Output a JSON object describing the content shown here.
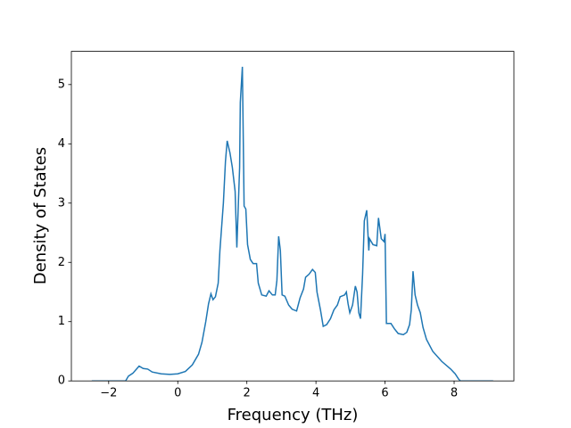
{
  "chart_data": {
    "type": "line",
    "x_label": "Frequency (THz)",
    "y_label": "Density of States",
    "xlim": [
      -3.08,
      9.73
    ],
    "ylim": [
      0,
      5.56
    ],
    "xticks": [
      {
        "value": -2,
        "label": "−2"
      },
      0,
      2,
      4,
      6,
      8
    ],
    "yticks": [
      0,
      1,
      2,
      3,
      4,
      5
    ],
    "series": [
      {
        "color": "#1f77b4",
        "x": [
          -2.49,
          -1.51,
          -1.43,
          -1.3,
          -1.12,
          -1.0,
          -0.87,
          -0.74,
          -0.48,
          -0.23,
          0,
          0.22,
          0.42,
          0.6,
          0.7,
          0.81,
          0.89,
          0.96,
          1.02,
          1.09,
          1.17,
          1.22,
          1.32,
          1.38,
          1.43,
          1.51,
          1.58,
          1.66,
          1.71,
          1.79,
          1.81,
          1.87,
          1.92,
          1.97,
          2.02,
          2.1,
          2.18,
          2.28,
          2.33,
          2.43,
          2.56,
          2.64,
          2.74,
          2.82,
          2.87,
          2.92,
          2.97,
          3.02,
          3.1,
          3.21,
          3.31,
          3.44,
          3.54,
          3.64,
          3.7,
          3.8,
          3.9,
          3.98,
          4.03,
          4.13,
          4.21,
          4.31,
          4.42,
          4.52,
          4.62,
          4.7,
          4.83,
          4.88,
          4.93,
          4.98,
          5.06,
          5.14,
          5.19,
          5.24,
          5.29,
          5.35,
          5.4,
          5.47,
          5.53,
          5.55,
          5.65,
          5.76,
          5.81,
          5.89,
          5.97,
          6.0,
          6.04,
          6.17,
          6.27,
          6.38,
          6.53,
          6.63,
          6.71,
          6.76,
          6.81,
          6.87,
          6.94,
          7.02,
          7.1,
          7.2,
          7.38,
          7.64,
          7.9,
          8.03,
          8.13,
          8.18,
          9.13
        ],
        "values": [
          0,
          0,
          0.08,
          0.13,
          0.25,
          0.21,
          0.2,
          0.15,
          0.12,
          0.11,
          0.12,
          0.16,
          0.27,
          0.45,
          0.65,
          1.0,
          1.3,
          1.47,
          1.37,
          1.42,
          1.65,
          2.2,
          3.0,
          3.7,
          4.05,
          3.85,
          3.6,
          3.2,
          2.25,
          3.6,
          4.7,
          5.3,
          2.95,
          2.9,
          2.3,
          2.05,
          1.98,
          1.98,
          1.65,
          1.45,
          1.43,
          1.52,
          1.45,
          1.45,
          1.7,
          2.44,
          2.2,
          1.45,
          1.43,
          1.28,
          1.21,
          1.18,
          1.4,
          1.55,
          1.75,
          1.8,
          1.88,
          1.83,
          1.5,
          1.2,
          0.92,
          0.95,
          1.05,
          1.2,
          1.28,
          1.42,
          1.45,
          1.5,
          1.3,
          1.15,
          1.28,
          1.6,
          1.5,
          1.15,
          1.05,
          1.8,
          2.7,
          2.88,
          2.2,
          2.4,
          2.3,
          2.28,
          2.75,
          2.4,
          2.35,
          2.48,
          0.97,
          0.97,
          0.88,
          0.8,
          0.78,
          0.82,
          0.95,
          1.2,
          1.85,
          1.45,
          1.28,
          1.15,
          0.9,
          0.7,
          0.5,
          0.33,
          0.2,
          0.12,
          0.03,
          0,
          0
        ]
      }
    ]
  }
}
